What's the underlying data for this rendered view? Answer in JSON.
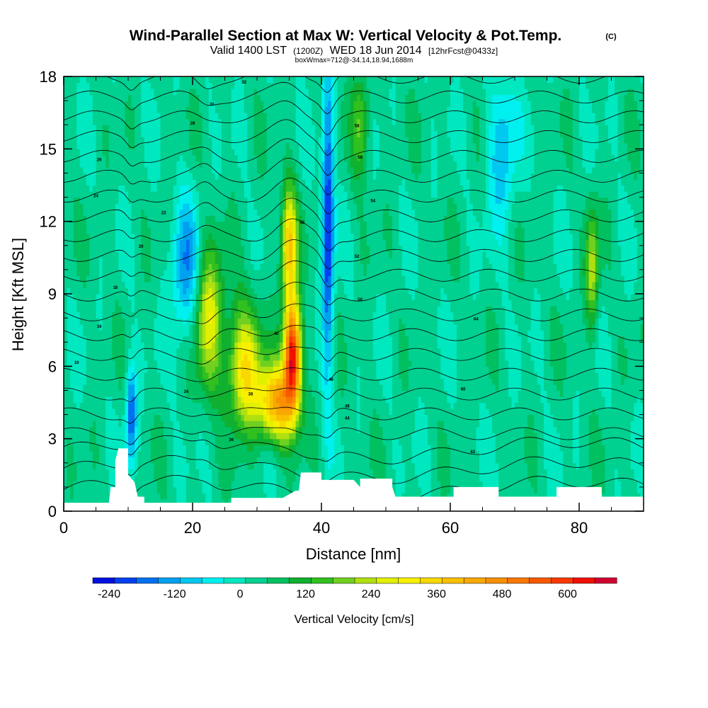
{
  "chart_data": {
    "type": "heatmap",
    "title": "Wind-Parallel Section at Max W: Vertical Velocity & Pot.Temp.",
    "title_mark": "(C)",
    "subtitle_prefix": "Valid 1400 LST",
    "subtitle_utc": "(1200Z)",
    "subtitle_date": "WED 18 Jun 2014",
    "subtitle_forecast": "[12hrFcst@0433z]",
    "box_info": "boxWmax=712@-34.14,18.94,1688m",
    "xlabel": "Distance [nm]",
    "ylabel": "Height [Kft MSL]",
    "xlim": [
      0,
      90
    ],
    "ylim": [
      0,
      18
    ],
    "xticks": [
      0,
      20,
      40,
      60,
      80
    ],
    "yticks": [
      0,
      3,
      6,
      9,
      12,
      15,
      18
    ],
    "colorbar": {
      "label": "Vertical Velocity [cm/s]",
      "range": [
        -270,
        690
      ],
      "step": 40,
      "tick_values": [
        -240,
        -120,
        0,
        120,
        240,
        360,
        480,
        600
      ],
      "tick_labels": [
        "-240",
        "-120",
        "0",
        "120",
        "240",
        "360",
        "480",
        "600"
      ],
      "colors": [
        "#0010e0",
        "#0040f0",
        "#0070f0",
        "#00a0f0",
        "#00c8f0",
        "#00f0f0",
        "#00e8c0",
        "#00d090",
        "#00c060",
        "#10b030",
        "#30c020",
        "#70d020",
        "#b0e010",
        "#e0f000",
        "#f8f000",
        "#f8d800",
        "#f8c000",
        "#f8a800",
        "#f89000",
        "#f87800",
        "#f85800",
        "#f83800",
        "#f01000",
        "#d00030"
      ]
    },
    "vertical_velocity_features": [
      {
        "name": "main updraft",
        "x": 35.5,
        "height": 6.5,
        "peak_cms": 640
      },
      {
        "name": "updraft core lower",
        "x": 33,
        "height": 4.5,
        "peak_cms": 420
      },
      {
        "name": "updraft column aloft",
        "x": 35,
        "height": 11,
        "peak_cms": 380
      },
      {
        "name": "secondary updraft",
        "x": 28,
        "height": 6,
        "peak_cms": 330
      },
      {
        "name": "western updraft",
        "x": 22.5,
        "height": 8,
        "peak_cms": 280
      },
      {
        "name": "eastern upper updraft",
        "x": 46,
        "height": 16,
        "peak_cms": 180
      },
      {
        "name": "far-east updraft",
        "x": 82,
        "height": 10,
        "peak_cms": 230
      },
      {
        "name": "downdraft band",
        "x": 41,
        "height": 12,
        "peak_cms": -240
      },
      {
        "name": "western downdraft",
        "x": 10.5,
        "height": 4,
        "peak_cms": -200
      },
      {
        "name": "upper downdraft",
        "x": 19,
        "height": 10,
        "peak_cms": -140
      },
      {
        "name": "eastern downdraft",
        "x": 68,
        "height": 15,
        "peak_cms": -110
      }
    ],
    "terrain": [
      [
        0,
        0.35
      ],
      [
        7,
        0.35
      ],
      [
        7.3,
        1.0
      ],
      [
        8,
        1.0
      ],
      [
        8,
        2.1
      ],
      [
        8.5,
        2.6
      ],
      [
        10,
        2.6
      ],
      [
        10,
        1.5
      ],
      [
        11,
        1.2
      ],
      [
        11.5,
        0.6
      ],
      [
        12.5,
        0.6
      ],
      [
        12.5,
        0.35
      ],
      [
        26,
        0.35
      ],
      [
        26,
        0.55
      ],
      [
        34,
        0.55
      ],
      [
        36,
        0.85
      ],
      [
        36.5,
        0.85
      ],
      [
        36.8,
        1.6
      ],
      [
        40,
        1.6
      ],
      [
        40,
        1.3
      ],
      [
        45,
        1.3
      ],
      [
        46,
        1.0
      ],
      [
        46,
        1.35
      ],
      [
        51,
        1.35
      ],
      [
        51,
        1.0
      ],
      [
        51.5,
        0.6
      ],
      [
        60.5,
        0.6
      ],
      [
        60.5,
        1.0
      ],
      [
        67.5,
        1.0
      ],
      [
        67.5,
        0.6
      ],
      [
        76.5,
        0.6
      ],
      [
        76.5,
        1.0
      ],
      [
        83.5,
        1.0
      ],
      [
        83.5,
        0.6
      ],
      [
        90,
        0.6
      ]
    ],
    "theta_contour_labels": [
      "10",
      "16",
      "18",
      "20",
      "22",
      "24",
      "26",
      "28",
      "30",
      "32",
      "34",
      "36",
      "38",
      "40",
      "42",
      "44",
      "46",
      "48",
      "50",
      "52",
      "54",
      "56",
      "58",
      "60",
      "62",
      "64"
    ]
  }
}
